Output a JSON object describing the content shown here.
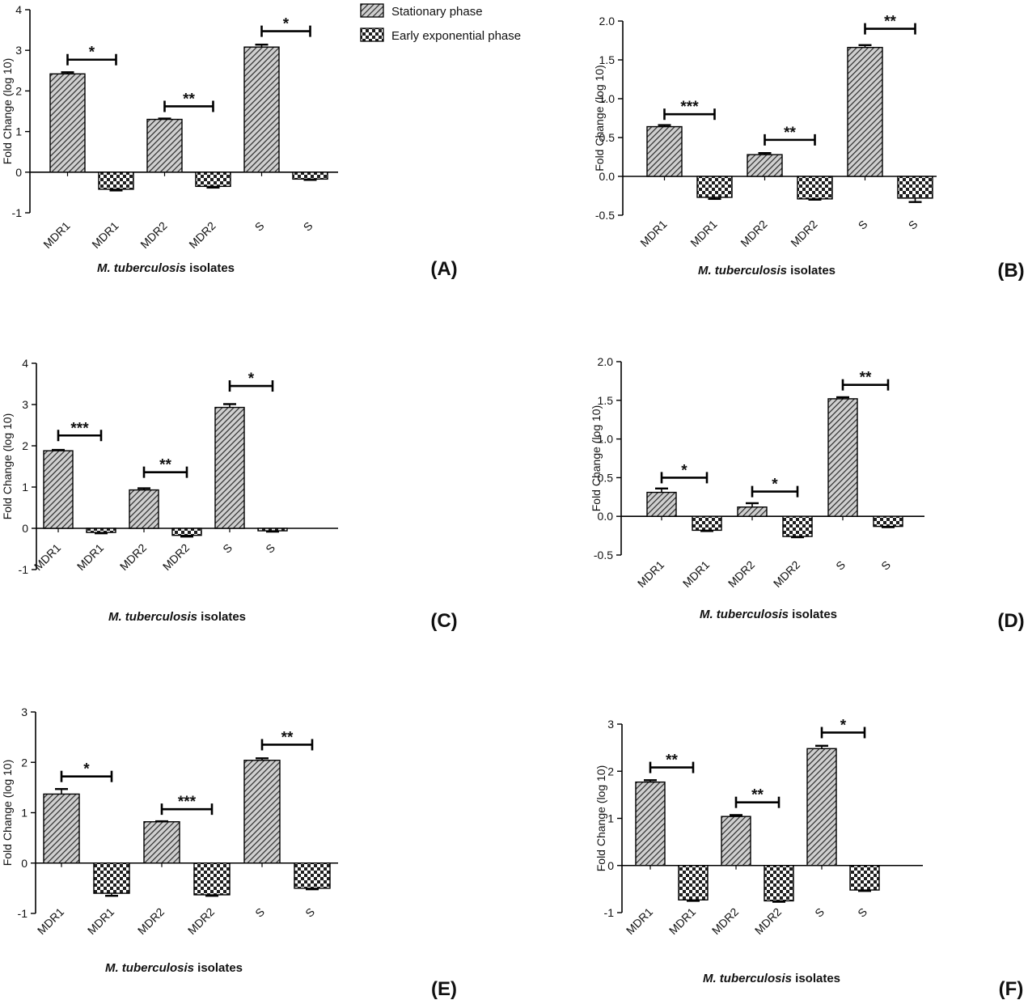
{
  "legend": {
    "stationary": "Stationary phase",
    "early": "Early exponential phase"
  },
  "chart_data": [
    {
      "panel": "(A)",
      "type": "bar",
      "ylabel": "Fold Change (log 10)",
      "xlabel_italic": "M. tuberculosis",
      "xlabel_rest": " isolates",
      "ylim": [
        -1,
        4
      ],
      "yticks": [
        "-1",
        "0",
        "1",
        "2",
        "3",
        "4"
      ],
      "categories": [
        "MDR1",
        "MDR1",
        "MDR2",
        "MDR2",
        "S",
        "S"
      ],
      "values": [
        2.42,
        -0.42,
        1.3,
        -0.35,
        3.08,
        -0.17
      ],
      "errors": [
        0.04,
        0.03,
        0.02,
        0.03,
        0.06,
        0.02
      ],
      "phase": [
        "stationary",
        "early",
        "stationary",
        "early",
        "stationary",
        "early"
      ],
      "significance": [
        {
          "pair": [
            0,
            1
          ],
          "level": 2.77,
          "label": "*"
        },
        {
          "pair": [
            2,
            3
          ],
          "level": 1.62,
          "label": "**"
        },
        {
          "pair": [
            4,
            5
          ],
          "level": 3.47,
          "label": "*"
        }
      ]
    },
    {
      "panel": "(B)",
      "type": "bar",
      "ylabel": "Fold Change (log 10)",
      "xlabel_italic": "M. tuberculosis",
      "xlabel_rest": " isolates",
      "ylim": [
        -0.5,
        2.0
      ],
      "yticks": [
        "-0.5",
        "0.0",
        "0.5",
        "1.0",
        "1.5",
        "2.0"
      ],
      "categories": [
        "MDR1",
        "MDR1",
        "MDR2",
        "MDR2",
        "S",
        "S"
      ],
      "values": [
        0.64,
        -0.27,
        0.28,
        -0.29,
        1.66,
        -0.28
      ],
      "errors": [
        0.02,
        0.02,
        0.02,
        0.01,
        0.03,
        0.05
      ],
      "phase": [
        "stationary",
        "early",
        "stationary",
        "early",
        "stationary",
        "early"
      ],
      "significance": [
        {
          "pair": [
            0,
            1
          ],
          "level": 0.8,
          "label": "***"
        },
        {
          "pair": [
            2,
            3
          ],
          "level": 0.47,
          "label": "**"
        },
        {
          "pair": [
            4,
            5
          ],
          "level": 1.9,
          "label": "**"
        }
      ]
    },
    {
      "panel": "(C)",
      "type": "bar",
      "ylabel": "Fold Change (log 10)",
      "xlabel_italic": "M. tuberculosis",
      "xlabel_rest": " isolates",
      "ylim": [
        -1,
        4
      ],
      "yticks": [
        "-1",
        "0",
        "1",
        "2",
        "3",
        "4"
      ],
      "categories": [
        "MDR1",
        "MDR1",
        "MDR2",
        "MDR2",
        "S",
        "S"
      ],
      "values": [
        1.88,
        -0.1,
        0.93,
        -0.17,
        2.93,
        -0.06
      ],
      "errors": [
        0.02,
        0.02,
        0.04,
        0.03,
        0.08,
        0.02
      ],
      "phase": [
        "stationary",
        "early",
        "stationary",
        "early",
        "stationary",
        "early"
      ],
      "significance": [
        {
          "pair": [
            0,
            1
          ],
          "level": 2.25,
          "label": "***"
        },
        {
          "pair": [
            2,
            3
          ],
          "level": 1.36,
          "label": "**"
        },
        {
          "pair": [
            4,
            5
          ],
          "level": 3.45,
          "label": "*"
        }
      ]
    },
    {
      "panel": "(D)",
      "type": "bar",
      "ylabel": "Fold Change (log 10)",
      "xlabel_italic": "M. tuberculosis",
      "xlabel_rest": " isolates",
      "ylim": [
        -0.5,
        2.0
      ],
      "yticks": [
        "-0.5",
        "0.0",
        "0.5",
        "1.0",
        "1.5",
        "2.0"
      ],
      "categories": [
        "MDR1",
        "MDR1",
        "MDR2",
        "MDR2",
        "S",
        "S"
      ],
      "values": [
        0.31,
        -0.18,
        0.12,
        -0.26,
        1.52,
        -0.13
      ],
      "errors": [
        0.05,
        0.01,
        0.05,
        0.01,
        0.02,
        0.01
      ],
      "phase": [
        "stationary",
        "early",
        "stationary",
        "early",
        "stationary",
        "early"
      ],
      "significance": [
        {
          "pair": [
            0,
            1
          ],
          "level": 0.5,
          "label": "*"
        },
        {
          "pair": [
            2,
            3
          ],
          "level": 0.32,
          "label": "*"
        },
        {
          "pair": [
            4,
            5
          ],
          "level": 1.7,
          "label": "**"
        }
      ]
    },
    {
      "panel": "(E)",
      "type": "bar",
      "ylabel": "Fold Change (log 10)",
      "xlabel_italic": "M. tuberculosis",
      "xlabel_rest": " isolates",
      "ylim": [
        -1,
        3
      ],
      "yticks": [
        "-1",
        "0",
        "1",
        "2",
        "3"
      ],
      "categories": [
        "MDR1",
        "MDR1",
        "MDR2",
        "MDR2",
        "S",
        "S"
      ],
      "values": [
        1.37,
        -0.6,
        0.82,
        -0.63,
        2.04,
        -0.5
      ],
      "errors": [
        0.1,
        0.05,
        0.01,
        0.02,
        0.04,
        0.02
      ],
      "phase": [
        "stationary",
        "early",
        "stationary",
        "early",
        "stationary",
        "early"
      ],
      "significance": [
        {
          "pair": [
            0,
            1
          ],
          "level": 1.72,
          "label": "*"
        },
        {
          "pair": [
            2,
            3
          ],
          "level": 1.07,
          "label": "***"
        },
        {
          "pair": [
            4,
            5
          ],
          "level": 2.35,
          "label": "**"
        }
      ]
    },
    {
      "panel": "(F)",
      "type": "bar",
      "ylabel": "Fold Change (log 10)",
      "xlabel_italic": "M. tuberculosis",
      "xlabel_rest": " isolates",
      "ylim": [
        -1,
        3
      ],
      "yticks": [
        "-1",
        "0",
        "1",
        "2",
        "3"
      ],
      "categories": [
        "MDR1",
        "MDR1",
        "MDR2",
        "MDR2",
        "S",
        "S"
      ],
      "values": [
        1.77,
        -0.73,
        1.04,
        -0.75,
        2.48,
        -0.52
      ],
      "errors": [
        0.04,
        0.02,
        0.03,
        0.02,
        0.06,
        0.02
      ],
      "phase": [
        "stationary",
        "early",
        "stationary",
        "early",
        "stationary",
        "early"
      ],
      "significance": [
        {
          "pair": [
            0,
            1
          ],
          "level": 2.08,
          "label": "**"
        },
        {
          "pair": [
            2,
            3
          ],
          "level": 1.34,
          "label": "**"
        },
        {
          "pair": [
            4,
            5
          ],
          "level": 2.82,
          "label": "*"
        }
      ]
    }
  ]
}
